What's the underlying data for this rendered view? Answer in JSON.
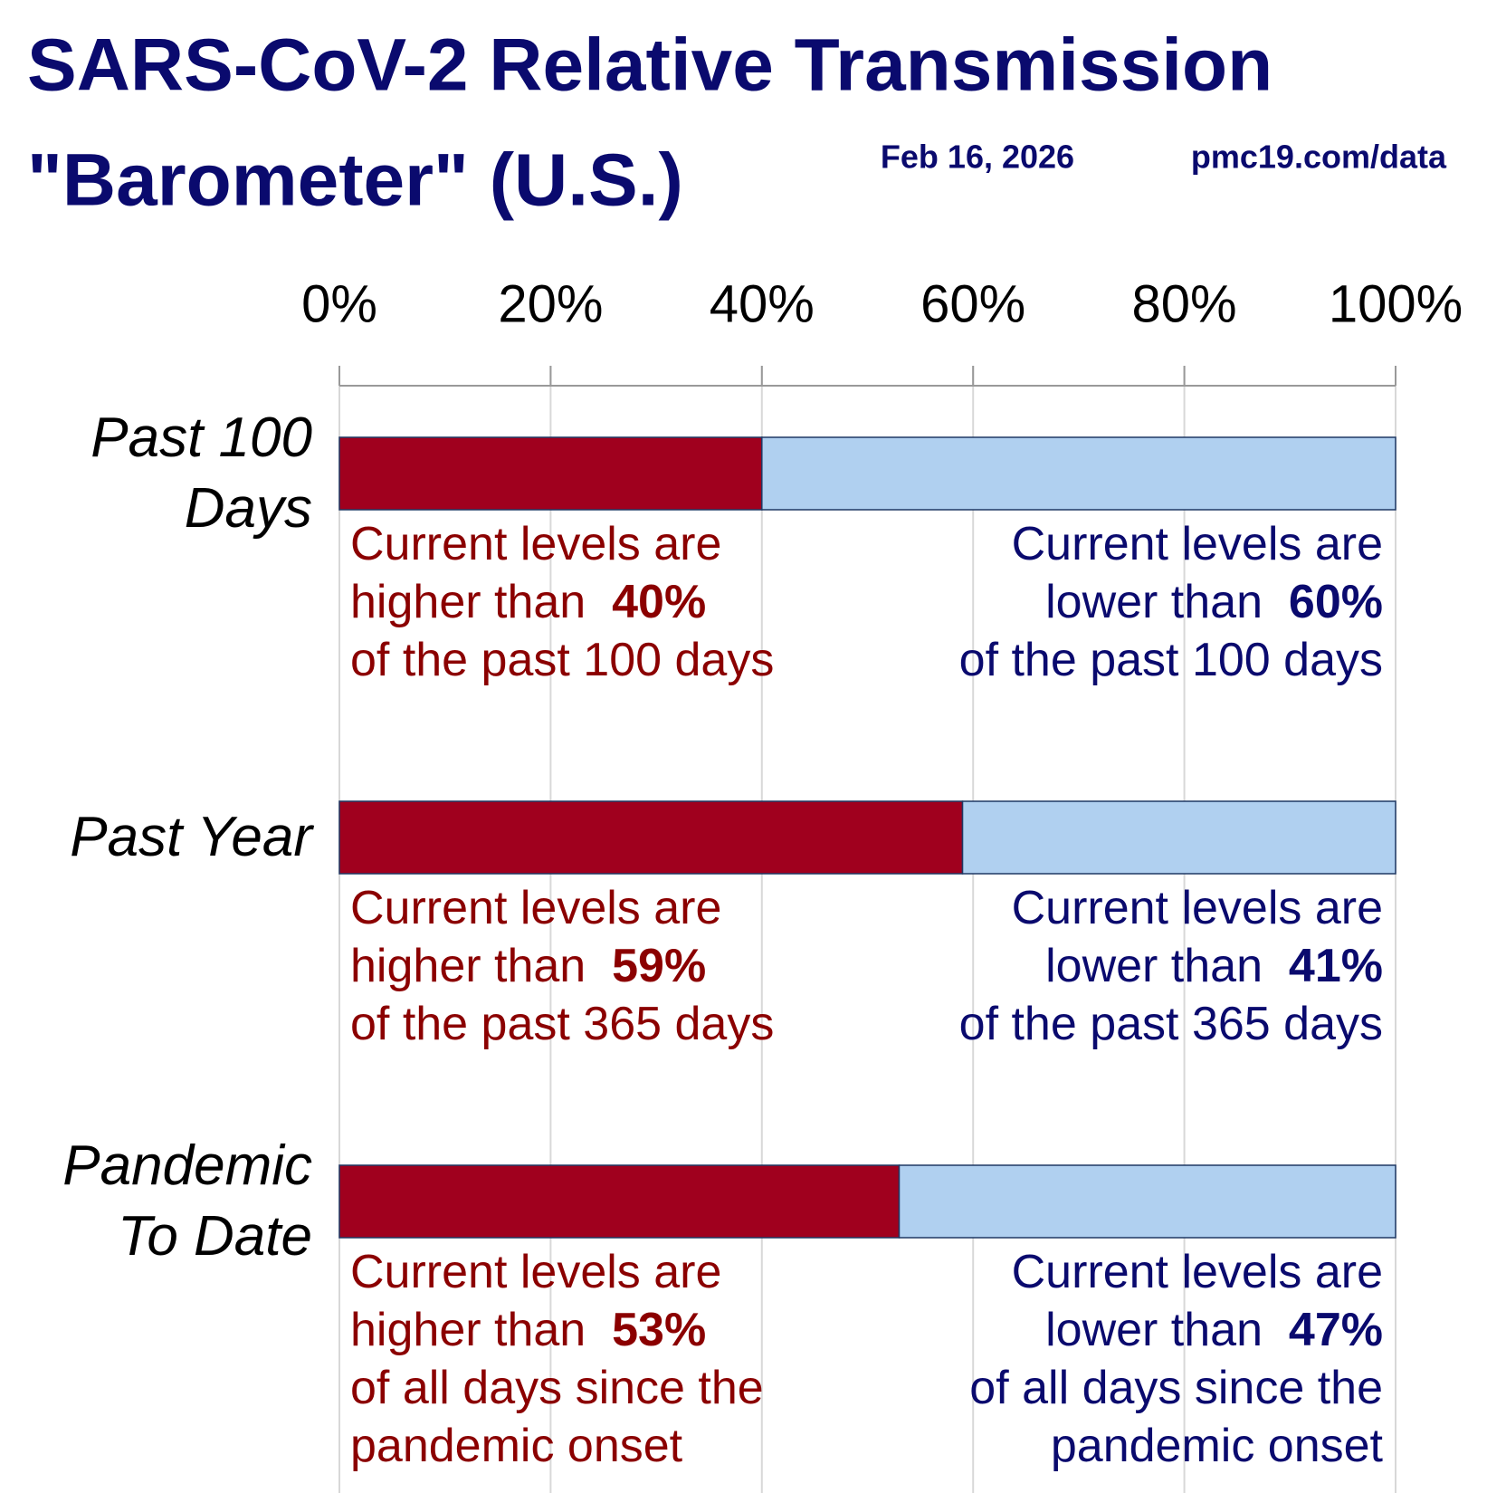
{
  "chart_data": {
    "type": "stacked_barh",
    "title": "SARS-CoV-2 Relative Transmission",
    "subtitle": "\"Barometer\" (U.S.)",
    "date": "Feb 16, 2026",
    "source": "pmc19.com/data",
    "categories": [
      "Past 100 Days",
      "Past Year",
      "Pandemic To Date"
    ],
    "series": [
      {
        "color": "#a0001e",
        "text_color": "#8b0000",
        "values": [
          40,
          59,
          53
        ],
        "value_labels": [
          "40%",
          "59%",
          "53%"
        ]
      },
      {
        "color": "#b0d0f0",
        "text_color": "#0a0a6e",
        "values": [
          60,
          41,
          47
        ],
        "value_labels": [
          "60%",
          "41%",
          "47%"
        ]
      }
    ],
    "annotations": [
      {
        "high_prefix": "Current levels are\nhigher than",
        "high_suffix": "of the past 100 days",
        "low_prefix": "Current levels are\nlower than",
        "low_suffix": "of the past 100 days"
      },
      {
        "high_prefix": "Current levels are\nhigher than",
        "high_suffix": "of the past 365 days",
        "low_prefix": "Current levels are\nlower than",
        "low_suffix": "of the past 365 days"
      },
      {
        "high_prefix": "Current levels are\nhigher than",
        "high_suffix": "of all days since the\npandemic onset",
        "low_prefix": "Current levels are\nlower than",
        "low_suffix": "of all days since the\npandemic onset"
      }
    ],
    "xlim": [
      0,
      100
    ],
    "xticks": [
      {
        "value": 0,
        "label": "0%"
      },
      {
        "value": 20,
        "label": "20%"
      },
      {
        "value": 40,
        "label": "40%"
      },
      {
        "value": 60,
        "label": "60%"
      },
      {
        "value": 80,
        "label": "80%"
      },
      {
        "value": 100,
        "label": "100%"
      }
    ],
    "grid": true
  }
}
